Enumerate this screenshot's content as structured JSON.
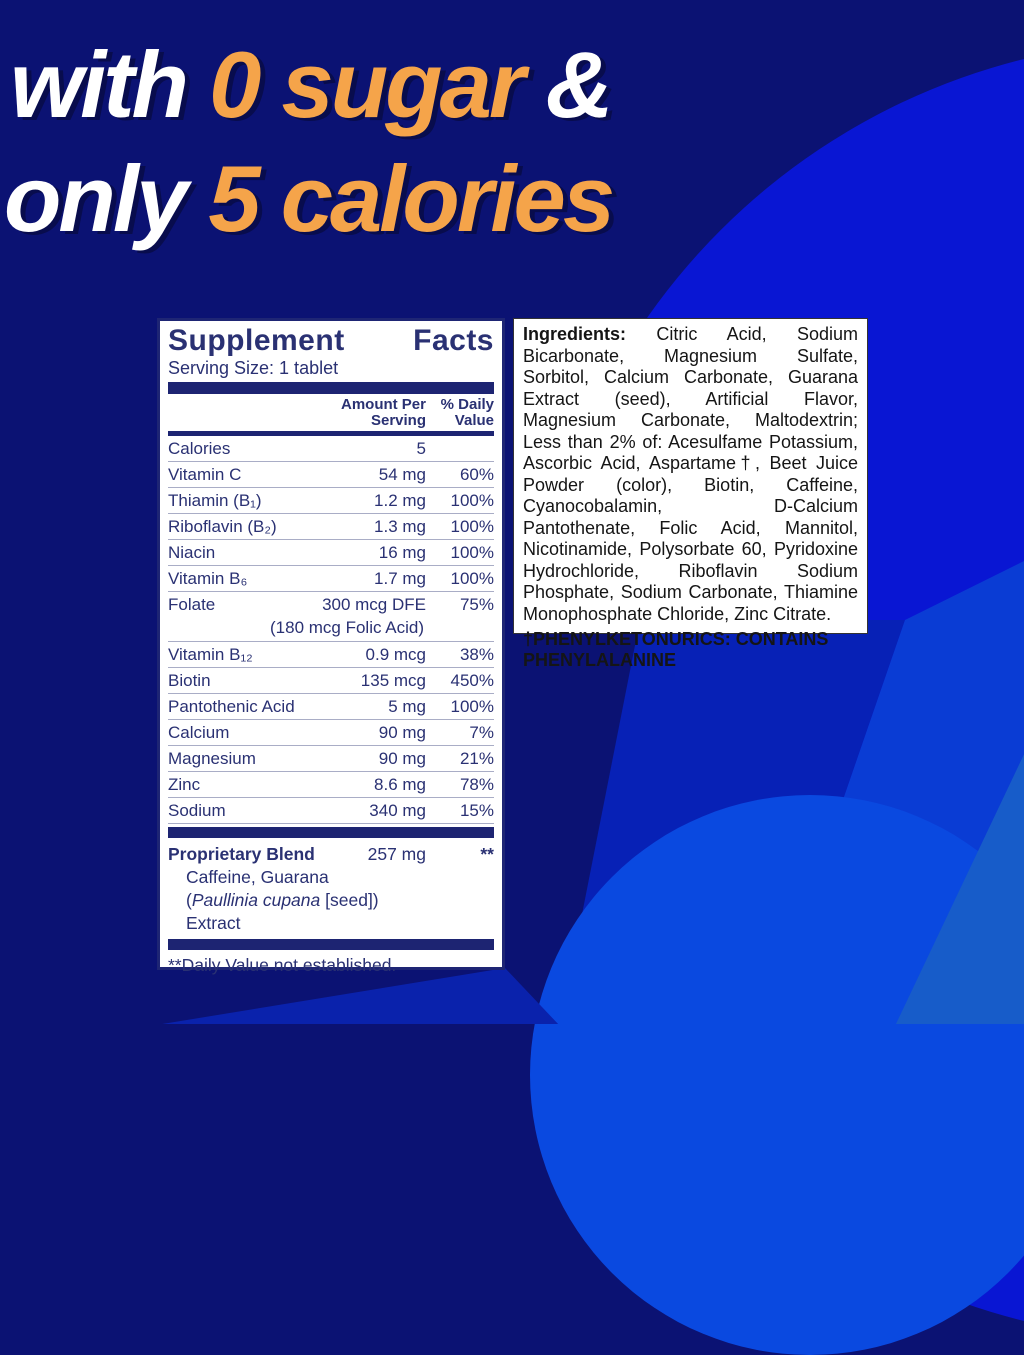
{
  "headline": {
    "line1": {
      "white1": "with ",
      "orange": "0 sugar ",
      "white2": "&"
    },
    "line2": {
      "white1": "only ",
      "orange": "5 calories"
    }
  },
  "colors": {
    "background_navy": "#0B1273",
    "bright_blue_circle": "#0916D3",
    "headline_orange": "#F5A44A",
    "panel_text_navy": "#2A3173",
    "bar_navy": "#1D2472"
  },
  "supplement_facts": {
    "title_left": "Supplement",
    "title_right": "Facts",
    "serving_size": "Serving Size: 1 tablet",
    "col_amount_line1": "Amount Per",
    "col_amount_line2": "Serving",
    "col_dv_line1": "% Daily",
    "col_dv_line2": "Value",
    "rows": [
      {
        "name": "Calories",
        "amount": "5",
        "dv": ""
      },
      {
        "name": "Vitamin C",
        "amount": "54 mg",
        "dv": "60%"
      },
      {
        "name": "Thiamin (B₁)",
        "amount": "1.2 mg",
        "dv": "100%"
      },
      {
        "name": "Riboflavin (B₂)",
        "amount": "1.3 mg",
        "dv": "100%"
      },
      {
        "name": "Niacin",
        "amount": "16 mg",
        "dv": "100%"
      },
      {
        "name": "Vitamin B₆",
        "amount": "1.7 mg",
        "dv": "100%"
      },
      {
        "name": "Folate",
        "amount": "300 mcg DFE",
        "amount2": "(180 mcg Folic Acid)",
        "dv": "75%"
      },
      {
        "name": "Vitamin B₁₂",
        "amount": "0.9 mcg",
        "dv": "38%"
      },
      {
        "name": "Biotin",
        "amount": "135 mcg",
        "dv": "450%"
      },
      {
        "name": "Pantothenic Acid",
        "amount": "5 mg",
        "dv": "100%"
      },
      {
        "name": "Calcium",
        "amount": "90 mg",
        "dv": "7%"
      },
      {
        "name": "Magnesium",
        "amount": "90 mg",
        "dv": "21%"
      },
      {
        "name": "Zinc",
        "amount": "8.6 mg",
        "dv": "78%"
      },
      {
        "name": "Sodium",
        "amount": "340 mg",
        "dv": "15%"
      }
    ],
    "blend": {
      "name": "Proprietary Blend",
      "amount": "257 mg",
      "dv": "**",
      "lines": [
        {
          "text": "Caffeine, Guarana"
        },
        {
          "pre": "(",
          "italic": "Paullinia cupana",
          "post": " [seed])"
        },
        {
          "text": "Extract"
        }
      ]
    },
    "footnote": "**Daily Value not established."
  },
  "ingredients": {
    "label": "Ingredients:",
    "text": "  Citric Acid, Sodium Bicarbonate, Magnesium Sulfate, Sorbitol, Calcium Carbonate, Guarana Extract (seed), Artificial Flavor, Magnesium Carbonate, Maltodextrin; Less than 2% of: Acesulfame Potassium, Ascorbic Acid, Aspartame†, Beet Juice Powder (color), Biotin, Caffeine, Cyanocobalamin, D-Calcium Pantothenate, Folic Acid, Mannitol, Nicotinamide, Polysorbate 60, Pyridoxine Hydrochloride, Riboflavin Sodium Phosphate, Sodium Carbonate, Thiamine Monophosphate Chloride, Zinc Citrate.",
    "warning": "†PHENYLKETONURICS: CONTAINS PHENYLALANINE"
  }
}
